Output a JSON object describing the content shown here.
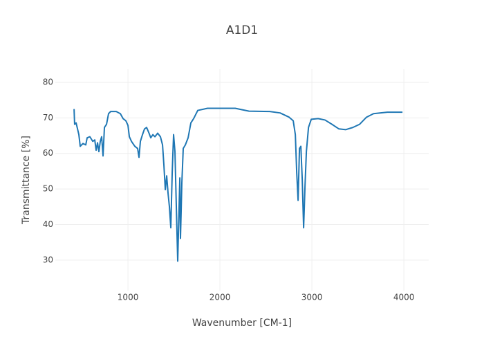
{
  "chart_data": {
    "type": "line",
    "title": "A1D1",
    "x_label": "Wavenumber [CM-1]",
    "y_label": "Transmittance [%]",
    "xlim": [
      210,
      4270
    ],
    "ylim": [
      21.4,
      83.7
    ],
    "xticks": [
      1000,
      2000,
      3000,
      4000
    ],
    "yticks": [
      30,
      40,
      50,
      60,
      70,
      80
    ],
    "grid": true,
    "x": [
      414,
      420,
      436,
      466,
      481,
      511,
      541,
      556,
      586,
      617,
      639,
      654,
      669,
      684,
      699,
      714,
      729,
      744,
      767,
      789,
      812,
      872,
      917,
      947,
      977,
      1000,
      1015,
      1038,
      1075,
      1105,
      1120,
      1135,
      1158,
      1180,
      1203,
      1226,
      1248,
      1271,
      1293,
      1323,
      1353,
      1376,
      1391,
      1406,
      1421,
      1436,
      1451,
      1466,
      1481,
      1496,
      1511,
      1526,
      1541,
      1556,
      1564,
      1571,
      1586,
      1601,
      1624,
      1654,
      1684,
      1714,
      1759,
      1865,
      2000,
      2166,
      2316,
      2542,
      2654,
      2752,
      2797,
      2820,
      2835,
      2850,
      2865,
      2880,
      2895,
      2910,
      2925,
      2940,
      2963,
      2993,
      3068,
      3143,
      3218,
      3294,
      3369,
      3444,
      3519,
      3594,
      3670,
      3820,
      3985
    ],
    "series": [
      {
        "name": "A1D1",
        "color": "#1f77b4",
        "values": [
          72.5,
          68.2,
          68.6,
          65.3,
          62,
          62.8,
          62.4,
          64.4,
          64.7,
          63.4,
          63.8,
          60.9,
          63,
          60.5,
          63.4,
          64.7,
          59.3,
          67.3,
          68.2,
          71.2,
          71.8,
          71.8,
          71.2,
          69.8,
          69.2,
          67.9,
          64.7,
          63.4,
          62,
          61.4,
          58.9,
          63.4,
          65.3,
          66.9,
          67.3,
          65.9,
          64.4,
          65.3,
          64.7,
          65.7,
          64.7,
          62.4,
          56.6,
          49.8,
          53.7,
          48.8,
          44.9,
          39.1,
          54.6,
          65.3,
          60.5,
          44.9,
          29.7,
          44.9,
          53.1,
          36.1,
          51.7,
          61.4,
          62.4,
          64.4,
          68.6,
          69.8,
          72.1,
          72.7,
          72.7,
          72.7,
          71.9,
          71.8,
          71.4,
          70.2,
          69.2,
          65.3,
          54.6,
          46.8,
          61.4,
          62,
          52.7,
          39.1,
          50.7,
          60.5,
          67.3,
          69.6,
          69.8,
          69.4,
          68.2,
          66.9,
          66.7,
          67.3,
          68.2,
          70.2,
          71.2,
          71.6,
          71.6
        ]
      }
    ]
  }
}
